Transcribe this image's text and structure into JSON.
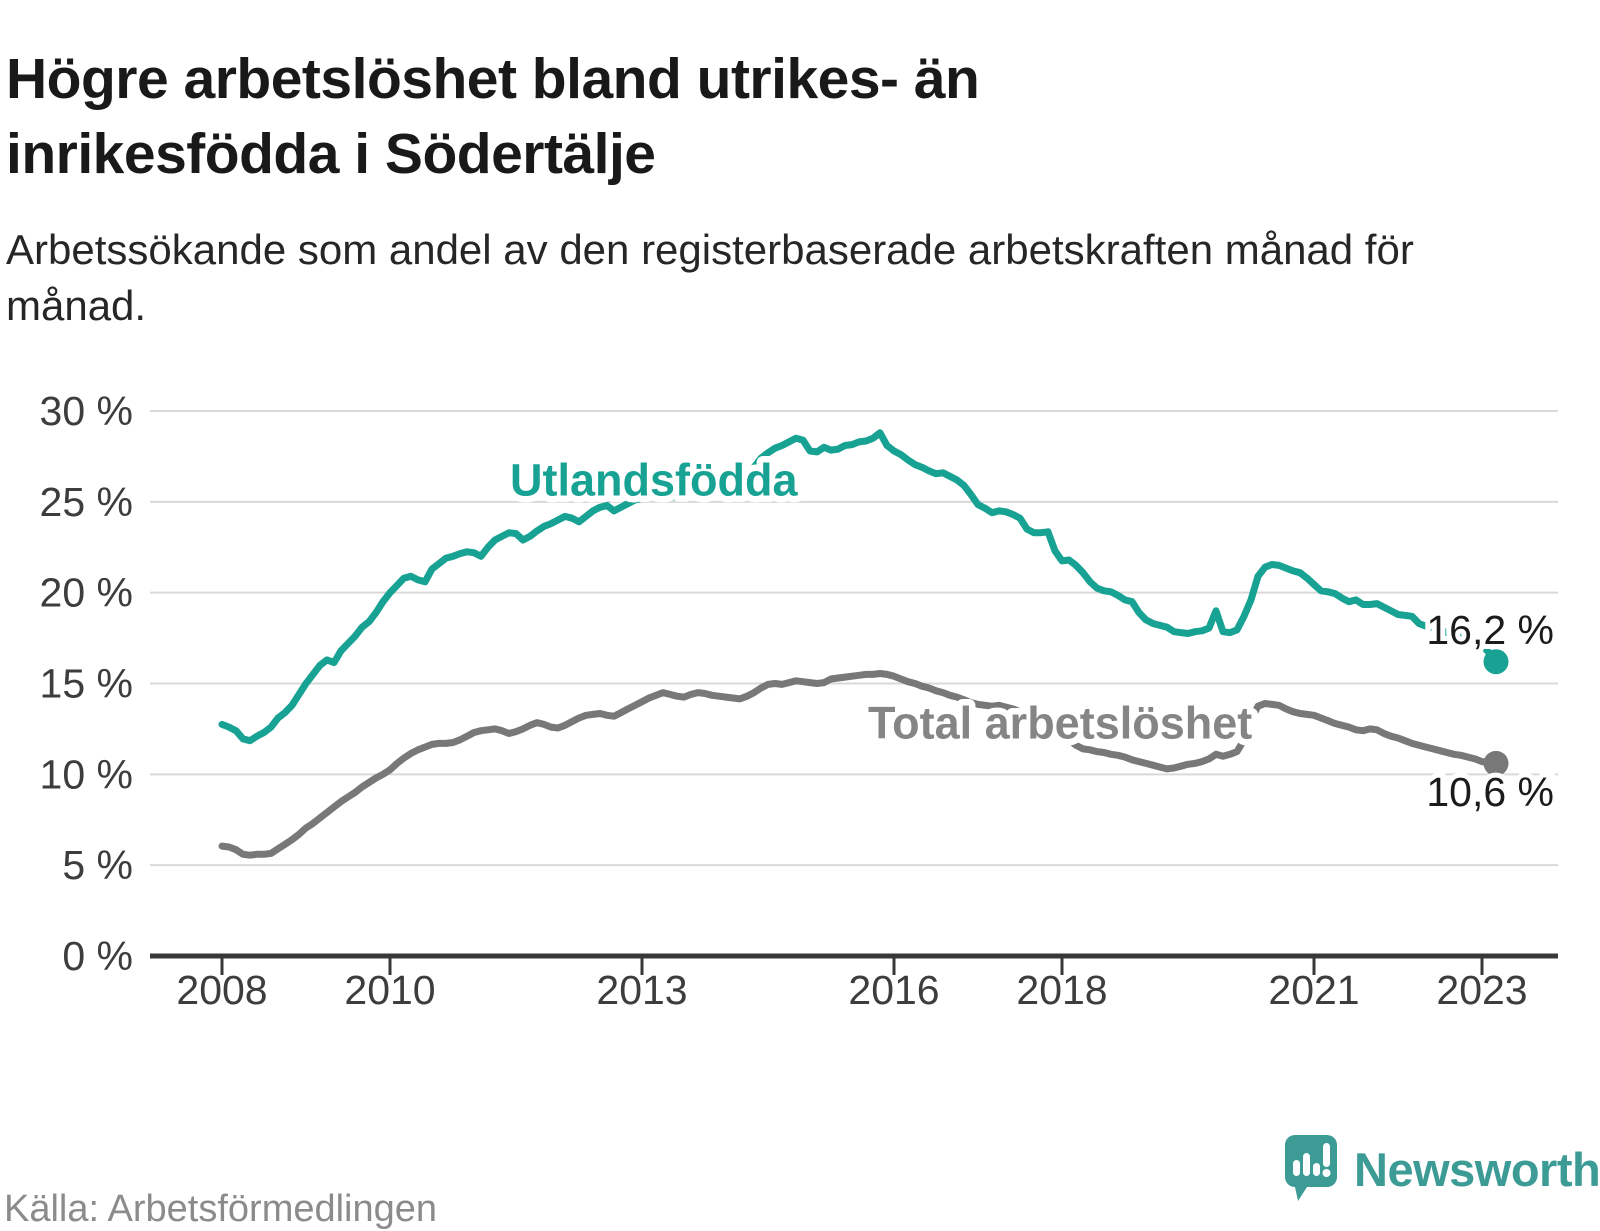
{
  "title": "Högre arbetslöshet bland utrikes- än inrikesfödda i Södertälje",
  "subtitle": "Arbetssökande som andel av den registerbaserade arbetskraften månad för månad.",
  "source": "Källa: Arbetsförmedlingen",
  "branding": {
    "name": "Newsworthy",
    "color": "#3d9b96"
  },
  "colors": {
    "title_text": "#191919",
    "subtitle_text": "#262626",
    "axis_text": "#3d3d3d",
    "axis_line": "#383838",
    "gridline": "#d9d9d9",
    "value_label_text": "#1b1b1b",
    "series_teal": "#17a294",
    "series_gray": "#787878",
    "gray_label": "#858585",
    "source_text": "#8b8b8b"
  },
  "chart_data": {
    "type": "line",
    "title": "Högre arbetslöshet bland utrikes- än inrikesfödda i Södertälje",
    "subtitle": "Arbetssökande som andel av den registerbaserade arbetskraften månad för månad.",
    "grid": "horizontal",
    "legend_position": "inline-labels",
    "x_axis": {
      "tick_values": [
        2008,
        2010,
        2013,
        2016,
        2018,
        2021,
        2023
      ],
      "tick_labels": [
        "2008",
        "2010",
        "2013",
        "2016",
        "2018",
        "2021",
        "2023"
      ],
      "range_years": [
        2007.15,
        2023.9
      ]
    },
    "y_axis": {
      "unit": "%",
      "tick_values": [
        0,
        5,
        10,
        15,
        20,
        25,
        30
      ],
      "tick_labels": [
        "0 %",
        "5 %",
        "10 %",
        "15 %",
        "20 %",
        "25 %",
        "30 %"
      ],
      "range": [
        0,
        30
      ]
    },
    "sampling": {
      "start_year": 2008.0,
      "step_years": 0.0833333
    },
    "series": [
      {
        "name": "Utlandsfödda",
        "color": "#17a294",
        "label_color": "#17a294",
        "end_label": "16,2 %",
        "end_value": 16.2,
        "values": [
          12.75,
          12.6,
          12.4,
          11.95,
          11.85,
          12.1,
          12.3,
          12.6,
          13.1,
          13.4,
          13.8,
          14.4,
          15.0,
          15.5,
          16.0,
          16.3,
          16.15,
          16.8,
          17.2,
          17.6,
          18.1,
          18.4,
          18.9,
          19.5,
          20.0,
          20.4,
          20.8,
          20.9,
          20.7,
          20.6,
          21.3,
          21.6,
          21.9,
          22.0,
          22.15,
          22.25,
          22.2,
          22.0,
          22.5,
          22.9,
          23.1,
          23.3,
          23.25,
          22.9,
          23.1,
          23.4,
          23.65,
          23.8,
          24.0,
          24.2,
          24.1,
          23.9,
          24.2,
          24.5,
          24.7,
          24.8,
          24.5,
          24.7,
          24.9,
          25.1,
          25.2,
          25.35,
          25.4,
          25.3,
          25.25,
          25.3,
          25.45,
          25.5,
          25.6,
          25.7,
          25.9,
          26.1,
          26.3,
          26.2,
          26.4,
          26.6,
          26.9,
          27.4,
          27.7,
          27.95,
          28.1,
          28.3,
          28.5,
          28.4,
          27.8,
          27.75,
          28.0,
          27.85,
          27.9,
          28.1,
          28.15,
          28.3,
          28.35,
          28.5,
          28.8,
          28.1,
          27.8,
          27.6,
          27.3,
          27.05,
          26.9,
          26.7,
          26.55,
          26.6,
          26.4,
          26.2,
          25.9,
          25.4,
          24.85,
          24.65,
          24.4,
          24.5,
          24.45,
          24.3,
          24.1,
          23.5,
          23.3,
          23.3,
          23.35,
          22.3,
          21.75,
          21.8,
          21.5,
          21.1,
          20.6,
          20.25,
          20.1,
          20.05,
          19.85,
          19.6,
          19.5,
          18.9,
          18.5,
          18.3,
          18.2,
          18.1,
          17.85,
          17.8,
          17.75,
          17.85,
          17.9,
          18.05,
          19.0,
          17.85,
          17.8,
          17.95,
          18.7,
          19.6,
          20.9,
          21.4,
          21.55,
          21.5,
          21.35,
          21.2,
          21.1,
          20.8,
          20.45,
          20.1,
          20.05,
          19.95,
          19.7,
          19.5,
          19.6,
          19.35,
          19.35,
          19.4,
          19.2,
          19.0,
          18.8,
          18.75,
          18.7,
          18.3,
          18.15,
          18.1,
          17.95,
          17.8,
          17.65,
          17.55,
          17.4,
          17.25,
          17.1,
          16.7,
          16.2
        ]
      },
      {
        "name": "Total arbetslöshet",
        "color": "#787878",
        "label_color": "#858585",
        "end_label": "10,6 %",
        "end_value": 10.6,
        "values": [
          6.05,
          6.0,
          5.85,
          5.6,
          5.55,
          5.6,
          5.6,
          5.65,
          5.9,
          6.15,
          6.4,
          6.7,
          7.05,
          7.3,
          7.6,
          7.9,
          8.2,
          8.5,
          8.75,
          9.0,
          9.3,
          9.55,
          9.8,
          10.0,
          10.25,
          10.6,
          10.9,
          11.15,
          11.35,
          11.5,
          11.65,
          11.7,
          11.7,
          11.75,
          11.9,
          12.1,
          12.3,
          12.4,
          12.45,
          12.5,
          12.4,
          12.25,
          12.35,
          12.5,
          12.7,
          12.85,
          12.75,
          12.6,
          12.55,
          12.7,
          12.9,
          13.1,
          13.25,
          13.3,
          13.35,
          13.25,
          13.2,
          13.4,
          13.6,
          13.8,
          14.0,
          14.2,
          14.35,
          14.5,
          14.4,
          14.3,
          14.25,
          14.4,
          14.5,
          14.45,
          14.35,
          14.3,
          14.25,
          14.2,
          14.15,
          14.3,
          14.5,
          14.75,
          14.95,
          15.0,
          14.95,
          15.05,
          15.15,
          15.1,
          15.05,
          15.0,
          15.05,
          15.25,
          15.3,
          15.35,
          15.4,
          15.45,
          15.5,
          15.5,
          15.55,
          15.5,
          15.4,
          15.25,
          15.1,
          15.0,
          14.85,
          14.75,
          14.6,
          14.5,
          14.35,
          14.25,
          14.1,
          13.95,
          13.85,
          13.8,
          13.75,
          13.8,
          13.7,
          13.6,
          13.45,
          13.25,
          13.1,
          12.9,
          12.7,
          12.4,
          12.15,
          11.9,
          11.6,
          11.4,
          11.35,
          11.25,
          11.2,
          11.1,
          11.05,
          10.95,
          10.8,
          10.7,
          10.6,
          10.5,
          10.4,
          10.3,
          10.35,
          10.45,
          10.55,
          10.6,
          10.7,
          10.85,
          11.1,
          11.0,
          11.1,
          11.25,
          11.9,
          13.0,
          13.75,
          13.9,
          13.85,
          13.8,
          13.6,
          13.45,
          13.35,
          13.3,
          13.25,
          13.1,
          12.95,
          12.8,
          12.7,
          12.6,
          12.45,
          12.4,
          12.5,
          12.45,
          12.25,
          12.1,
          12.0,
          11.85,
          11.7,
          11.6,
          11.5,
          11.4,
          11.3,
          11.2,
          11.1,
          11.05,
          10.95,
          10.85,
          10.7,
          10.65,
          10.6
        ]
      }
    ]
  }
}
